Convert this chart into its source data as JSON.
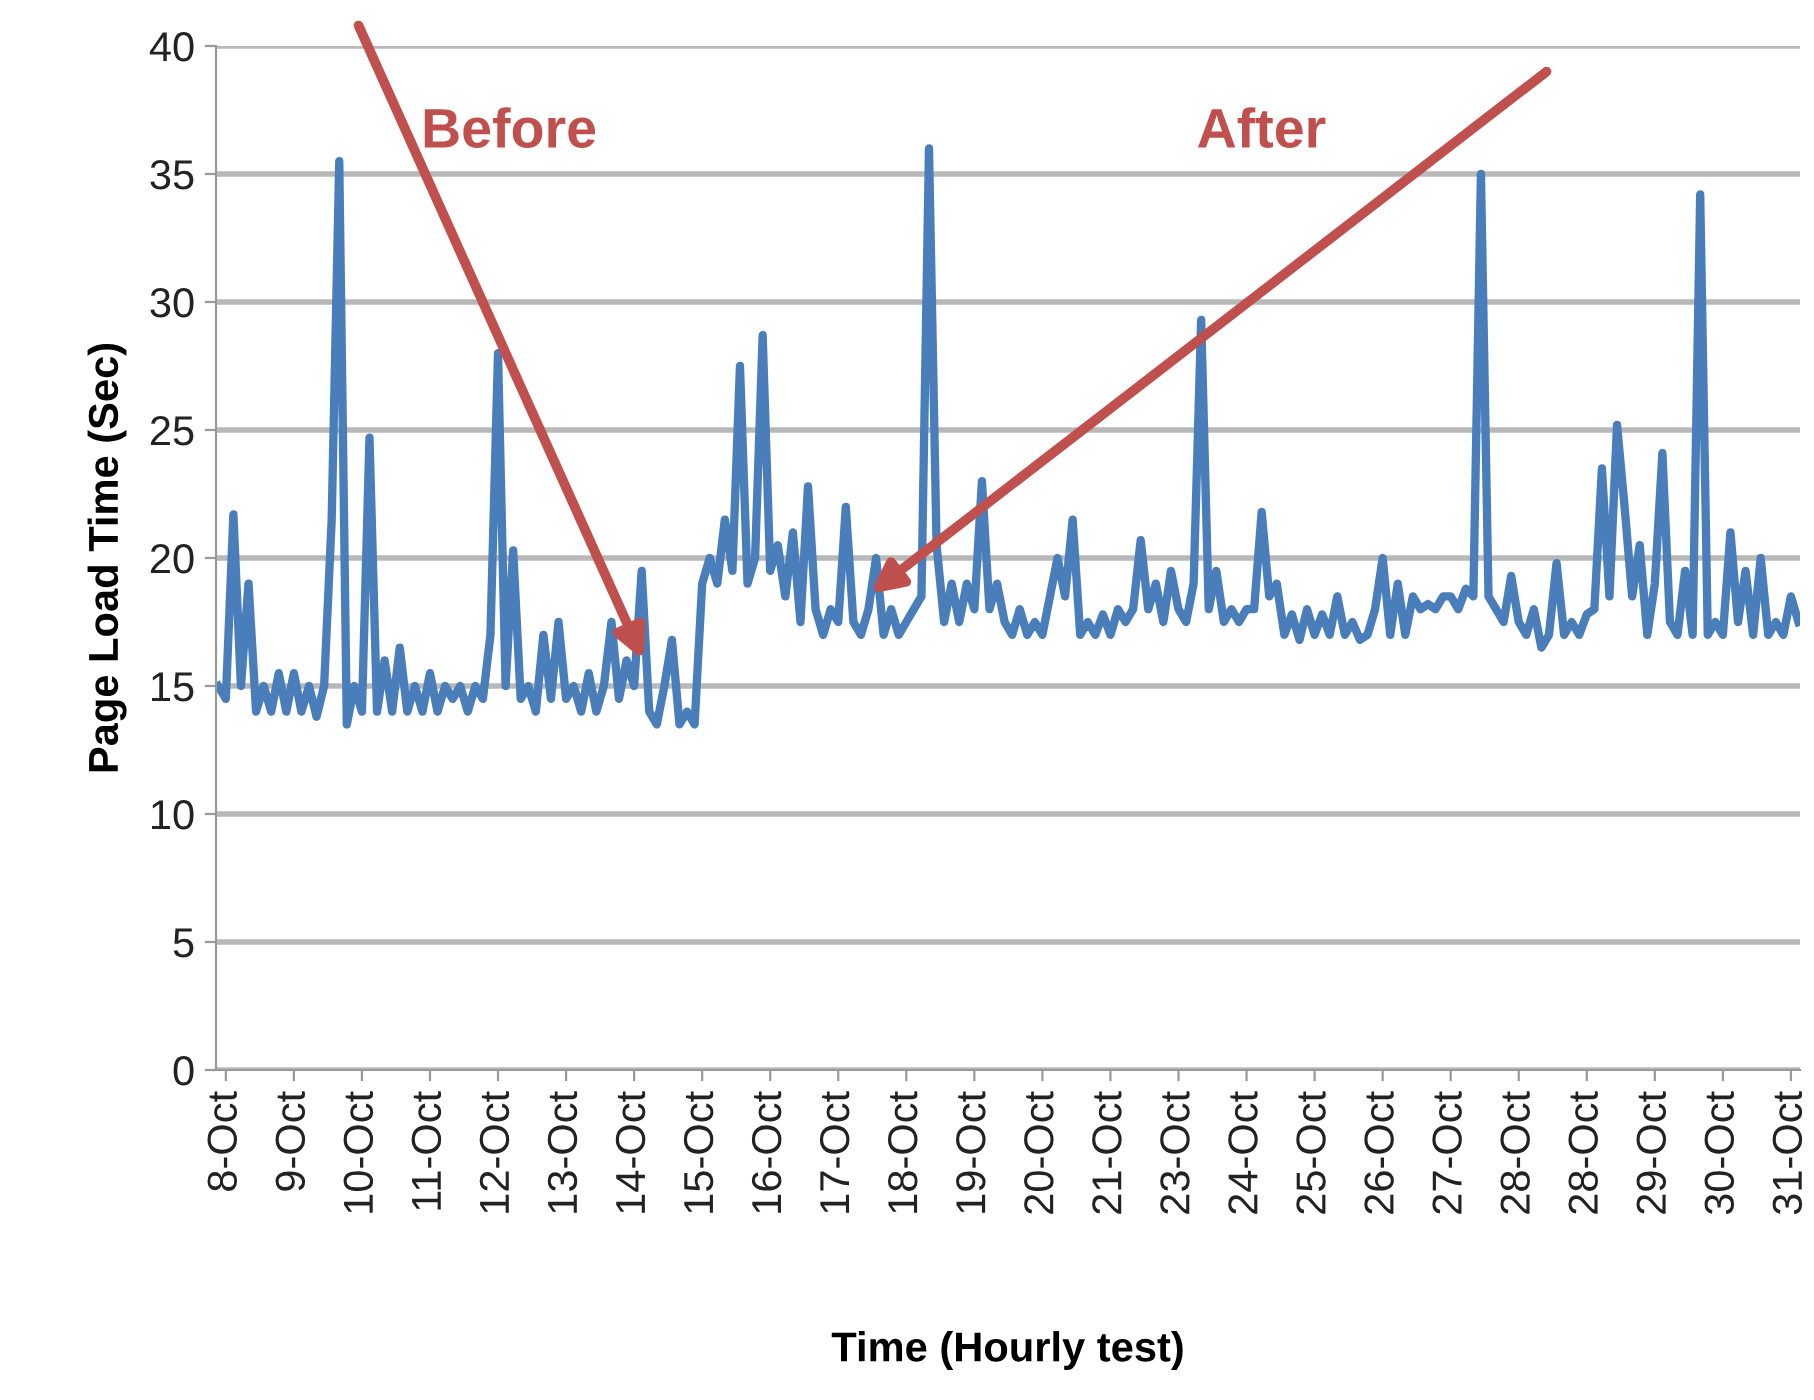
{
  "chart_data": {
    "type": "line",
    "xlabel": "Time (Hourly test)",
    "ylabel": "Page Load Time (Sec)",
    "ylim": [
      0,
      40
    ],
    "yticks": [
      0,
      5,
      10,
      15,
      20,
      25,
      30,
      35,
      40
    ],
    "categories": [
      null,
      "8-Oct",
      null,
      null,
      null,
      null,
      null,
      null,
      null,
      null,
      "9-Oct",
      null,
      null,
      null,
      null,
      null,
      null,
      null,
      null,
      "10-Oct",
      null,
      null,
      null,
      null,
      null,
      null,
      null,
      null,
      "11-Oct",
      null,
      null,
      null,
      null,
      null,
      null,
      null,
      null,
      "12-Oct",
      null,
      null,
      null,
      null,
      null,
      null,
      null,
      null,
      "13-Oct",
      null,
      null,
      null,
      null,
      null,
      null,
      null,
      null,
      "14-Oct",
      null,
      null,
      null,
      null,
      null,
      null,
      null,
      null,
      "15-Oct",
      null,
      null,
      null,
      null,
      null,
      null,
      null,
      null,
      "16-Oct",
      null,
      null,
      null,
      null,
      null,
      null,
      null,
      null,
      "17-Oct",
      null,
      null,
      null,
      null,
      null,
      null,
      null,
      null,
      "18-Oct",
      null,
      null,
      null,
      null,
      null,
      null,
      null,
      null,
      "19-Oct",
      null,
      null,
      null,
      null,
      null,
      null,
      null,
      null,
      "20-Oct",
      null,
      null,
      null,
      null,
      null,
      null,
      null,
      null,
      "21-Oct",
      null,
      null,
      null,
      null,
      null,
      null,
      null,
      null,
      "23-Oct",
      null,
      null,
      null,
      null,
      null,
      null,
      null,
      null,
      "24-Oct",
      null,
      null,
      null,
      null,
      null,
      null,
      null,
      null,
      "25-Oct",
      null,
      null,
      null,
      null,
      null,
      null,
      null,
      null,
      "26-Oct",
      null,
      null,
      null,
      null,
      null,
      null,
      null,
      null,
      "27-Oct",
      null,
      null,
      null,
      null,
      null,
      null,
      null,
      null,
      "28-Oct",
      null,
      null,
      null,
      null,
      null,
      null,
      null,
      null,
      "28-Oct",
      null,
      null,
      null,
      null,
      null,
      null,
      null,
      null,
      "29-Oct",
      null,
      null,
      null,
      null,
      null,
      null,
      null,
      null,
      "30-Oct",
      null,
      null,
      null,
      null,
      null,
      null,
      null,
      null,
      "31-Oct",
      null
    ],
    "grid": "y",
    "legend": false,
    "marker": "none",
    "line_style": "solid",
    "annotations": [
      "Before",
      "After"
    ],
    "series": [
      {
        "color": "#4a7ebb",
        "values": [
          15,
          14.5,
          21.7,
          15,
          19,
          14,
          15,
          14,
          15.5,
          14,
          15.5,
          14,
          15,
          13.8,
          15,
          21.5,
          35.5,
          13.5,
          15,
          14,
          24.7,
          14,
          16,
          14,
          16.5,
          14,
          15,
          14,
          15.5,
          14,
          15,
          14.5,
          15,
          14,
          15,
          14.5,
          17,
          28,
          15,
          20.3,
          14.5,
          15,
          14,
          17,
          14.5,
          17.5,
          14.5,
          15,
          14,
          15.5,
          14,
          15,
          17.5,
          14.5,
          16,
          15,
          19.5,
          14,
          13.5,
          15,
          16.8,
          13.5,
          14,
          13.5,
          19,
          20,
          19,
          21.5,
          19.5,
          27.5,
          19,
          20,
          28.7,
          19.5,
          20.5,
          18.5,
          21,
          17.5,
          22.8,
          18,
          17,
          18,
          17.5,
          22,
          17.5,
          17,
          18,
          20,
          17,
          18,
          17,
          17.5,
          18,
          18.5,
          36,
          20.5,
          17.5,
          19,
          17.5,
          19,
          18,
          23,
          18,
          19,
          17.5,
          17,
          18,
          17,
          17.5,
          17,
          18.5,
          20,
          18.5,
          21.5,
          17,
          17.5,
          17,
          17.8,
          17,
          18,
          17.5,
          18,
          20.7,
          18,
          19,
          17.5,
          19.5,
          18,
          17.5,
          19,
          29.3,
          18,
          19.5,
          17.5,
          18,
          17.5,
          18,
          18,
          21.8,
          18.5,
          19,
          17,
          17.8,
          16.8,
          18,
          17,
          17.8,
          17,
          18.5,
          17,
          17.5,
          16.8,
          17,
          18,
          20,
          17,
          19,
          17,
          18.5,
          18,
          18.2,
          18,
          18.5,
          18.5,
          18,
          18.8,
          18.5,
          35,
          18.5,
          18,
          17.5,
          19.3,
          17.5,
          17,
          18,
          16.5,
          17,
          19.8,
          17,
          17.5,
          17,
          17.8,
          18,
          23.5,
          18.5,
          25.2,
          22,
          18.5,
          20.5,
          17,
          19,
          24.1,
          17.5,
          17,
          19.5,
          17,
          34.2,
          17,
          17.5,
          17,
          21,
          17.5,
          19.5,
          17,
          20,
          17,
          17.5,
          17,
          18.5,
          17.5
        ]
      }
    ]
  }
}
